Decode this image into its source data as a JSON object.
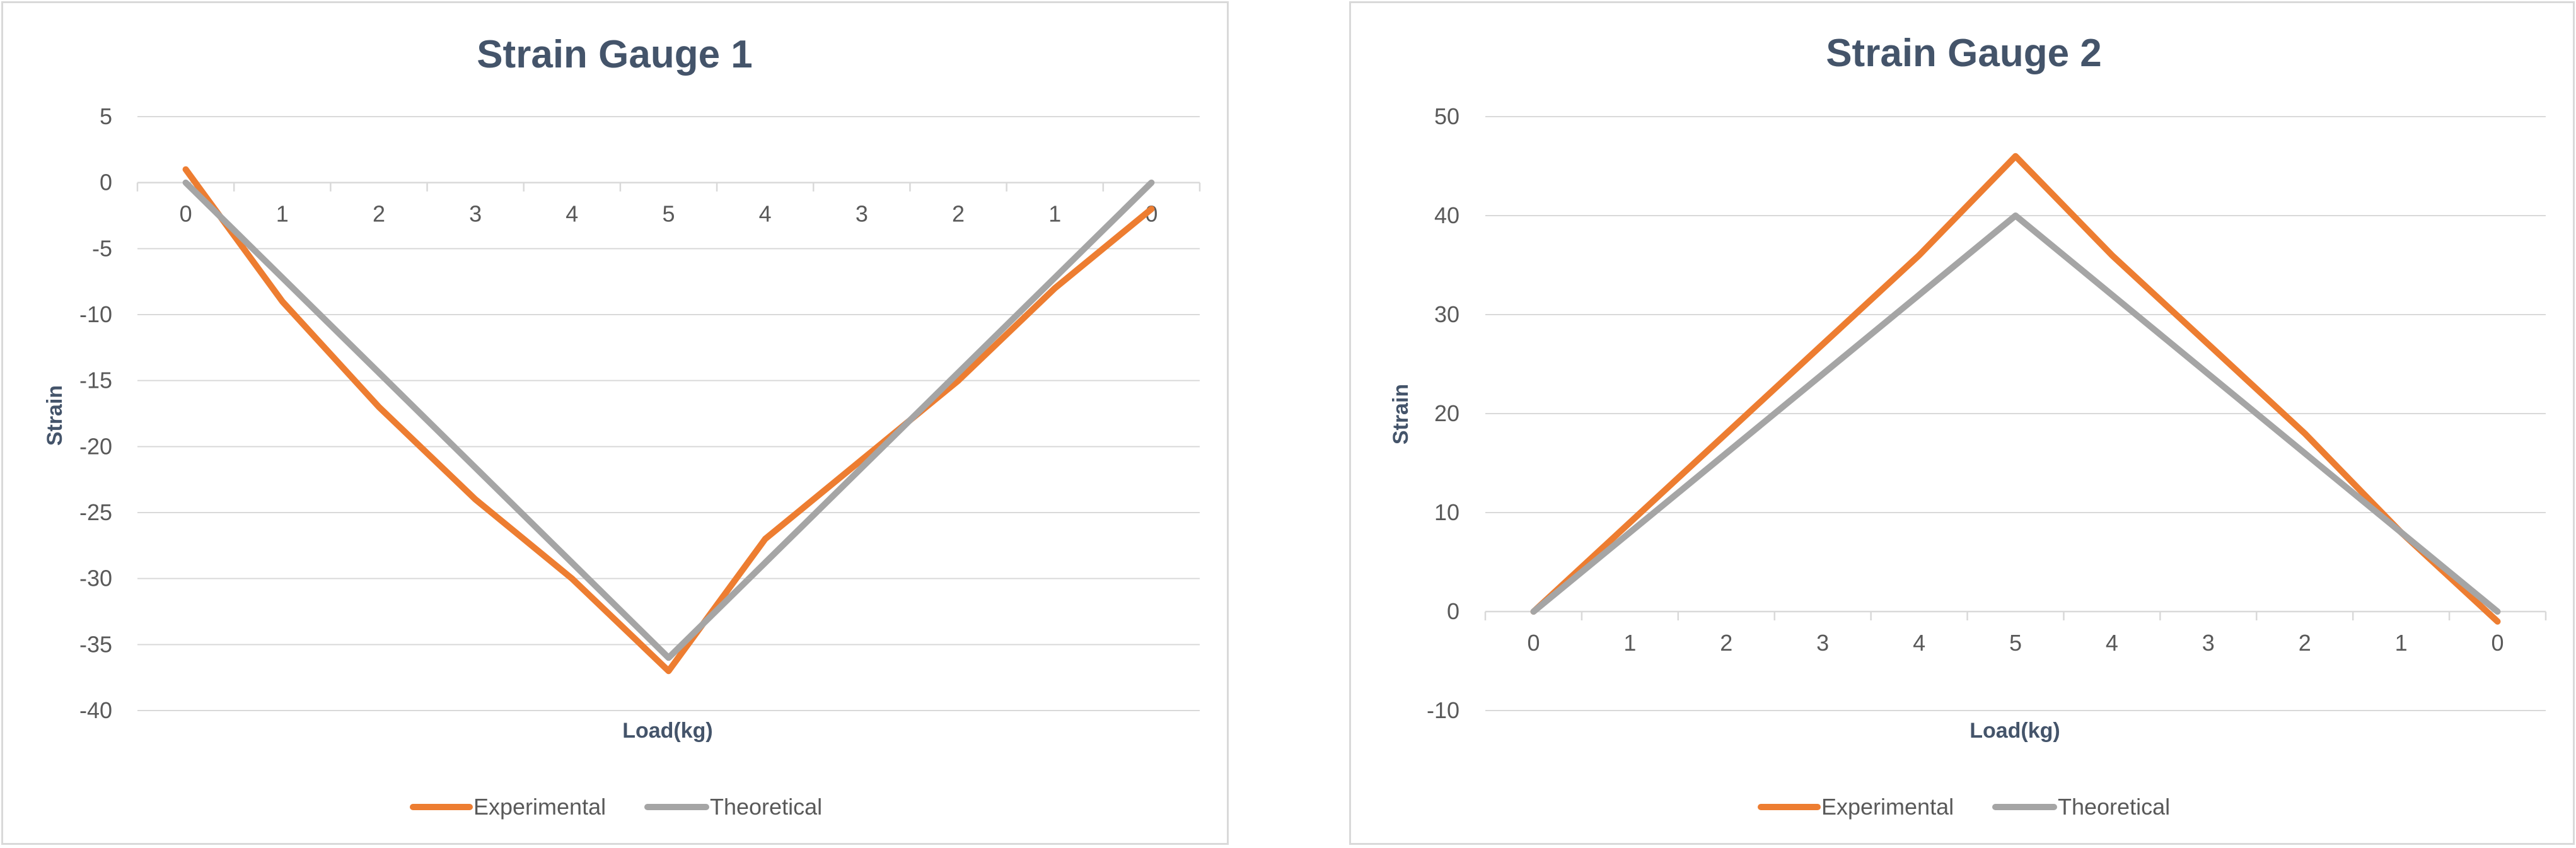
{
  "chart_data": [
    {
      "type": "line",
      "title": "Strain Gauge 1",
      "xlabel": "Load(kg)",
      "ylabel": "Strain",
      "categories": [
        "0",
        "1",
        "2",
        "3",
        "4",
        "5",
        "4",
        "3",
        "2",
        "1",
        "0"
      ],
      "ylim": [
        -40,
        5
      ],
      "yticks": [
        5,
        0,
        -5,
        -10,
        -15,
        -20,
        -25,
        -30,
        -35,
        -40
      ],
      "ytick_labels": [
        "5",
        "0",
        "-5",
        "-10",
        "-15",
        "-20",
        "-25",
        "-30",
        "-35",
        "-40"
      ],
      "category_axis_at": 0,
      "grid": true,
      "legend_position": "bottom",
      "series": [
        {
          "name": "Experimental",
          "color": "#ed7d31",
          "values": [
            1,
            -9,
            -17,
            -24,
            -30,
            -37,
            -27,
            -21,
            -15,
            -8,
            -2
          ]
        },
        {
          "name": "Theoretical",
          "color": "#a5a5a5",
          "values": [
            0,
            -7.2,
            -14.4,
            -21.6,
            -28.8,
            -36,
            -28.8,
            -21.6,
            -14.4,
            -7.2,
            0
          ]
        }
      ]
    },
    {
      "type": "line",
      "title": "Strain Gauge 2",
      "xlabel": "Load(kg)",
      "ylabel": "Strain",
      "categories": [
        "0",
        "1",
        "2",
        "3",
        "4",
        "5",
        "4",
        "3",
        "2",
        "1",
        "0"
      ],
      "ylim": [
        -10,
        50
      ],
      "yticks": [
        50,
        40,
        30,
        20,
        10,
        0,
        -10
      ],
      "ytick_labels": [
        "50",
        "40",
        "30",
        "20",
        "10",
        "0",
        "-10"
      ],
      "category_axis_at": 0,
      "grid": true,
      "legend_position": "bottom",
      "series": [
        {
          "name": "Experimental",
          "color": "#ed7d31",
          "values": [
            0,
            9,
            18,
            27,
            36,
            46,
            36,
            27,
            18,
            8,
            -1
          ]
        },
        {
          "name": "Theoretical",
          "color": "#a5a5a5",
          "values": [
            0,
            8,
            16,
            24,
            32,
            40,
            32,
            24,
            16,
            8,
            0
          ]
        }
      ]
    }
  ]
}
